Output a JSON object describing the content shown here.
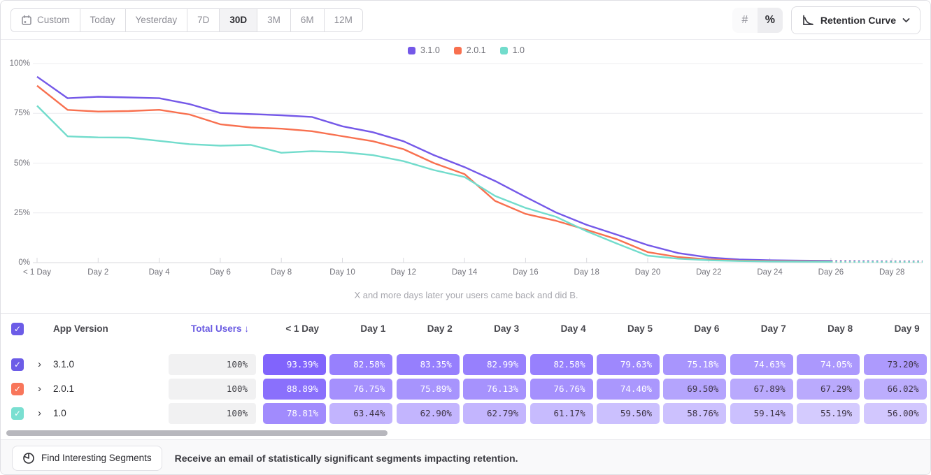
{
  "toolbar": {
    "date_ranges": [
      "Custom",
      "Today",
      "Yesterday",
      "7D",
      "30D",
      "3M",
      "6M",
      "12M"
    ],
    "selected_range": "30D",
    "mode_number_label": "#",
    "mode_percent_label": "%",
    "selected_mode": "%",
    "view_selector_label": "Retention Curve"
  },
  "legend": [
    {
      "label": "3.1.0",
      "color": "#7458E8"
    },
    {
      "label": "2.0.1",
      "color": "#F8704F"
    },
    {
      "label": "1.0",
      "color": "#72DCCC"
    }
  ],
  "chart_data": {
    "type": "line",
    "title": "",
    "caption": "X and more days later your users came back and did B.",
    "ylabel": "",
    "xlabel": "",
    "ylim": [
      0,
      100
    ],
    "y_tick_labels": [
      "0%",
      "25%",
      "50%",
      "75%",
      "100%"
    ],
    "x": [
      0,
      1,
      2,
      3,
      4,
      5,
      6,
      7,
      8,
      9,
      10,
      11,
      12,
      13,
      14,
      15,
      16,
      17,
      18,
      19,
      20,
      21,
      22,
      23,
      24,
      25,
      26,
      27,
      28
    ],
    "x_tick_days": [
      0,
      2,
      4,
      6,
      8,
      10,
      12,
      14,
      16,
      18,
      20,
      22,
      24,
      26,
      28
    ],
    "x_tick_labels": [
      "< 1 Day",
      "Day 2",
      "Day 4",
      "Day 6",
      "Day 8",
      "Day 10",
      "Day 12",
      "Day 14",
      "Day 16",
      "Day 18",
      "Day 20",
      "Day 22",
      "Day 24",
      "Day 26",
      "Day 28"
    ],
    "legend_position": "top-center",
    "grid": "horizontal",
    "series": [
      {
        "name": "3.1.0",
        "color": "#7458E8",
        "values": [
          93.39,
          82.58,
          83.35,
          82.99,
          82.58,
          79.63,
          75.18,
          74.63,
          74.05,
          73.2,
          68.5,
          65.5,
          61.0,
          54.0,
          48.0,
          41.0,
          33.0,
          25.2,
          19.0,
          14.0,
          8.8,
          4.8,
          2.6,
          1.6,
          1.2,
          1.0,
          0.9,
          0.8,
          0.7
        ]
      },
      {
        "name": "2.0.1",
        "color": "#F8704F",
        "values": [
          88.89,
          76.75,
          75.89,
          76.13,
          76.76,
          74.4,
          69.5,
          67.89,
          67.29,
          66.02,
          63.5,
          61.0,
          57.0,
          50.0,
          44.5,
          31.0,
          24.5,
          21.0,
          16.5,
          11.7,
          5.3,
          2.8,
          1.6,
          1.0,
          0.8,
          0.7,
          0.6,
          0.5,
          0.5
        ]
      },
      {
        "name": "1.0",
        "color": "#72DCCC",
        "values": [
          78.81,
          63.44,
          62.9,
          62.79,
          61.17,
          59.5,
          58.76,
          59.14,
          55.19,
          56.0,
          55.5,
          54.0,
          51.0,
          46.5,
          43.0,
          33.5,
          27.5,
          23.0,
          15.8,
          9.5,
          3.5,
          2.0,
          1.2,
          0.8,
          0.6,
          0.5,
          0.45,
          0.4,
          0.4
        ]
      }
    ]
  },
  "table": {
    "columns": [
      "App Version",
      "Total Users",
      "< 1 Day",
      "Day 1",
      "Day 2",
      "Day 3",
      "Day 4",
      "Day 5",
      "Day 6",
      "Day 7",
      "Day 8",
      "Day 9"
    ],
    "sort_column": "Total Users",
    "sort_indicator": "↓",
    "checkmark": "✓",
    "row_chevron": "›",
    "header_checkbox_color": "#6C5CE7",
    "rows": [
      {
        "name": "3.1.0",
        "checkbox_color": "#6C5CE7",
        "total_users": "100%",
        "values": [
          93.39,
          82.58,
          83.35,
          82.99,
          82.58,
          79.63,
          75.18,
          74.63,
          74.05,
          73.2
        ]
      },
      {
        "name": "2.0.1",
        "checkbox_color": "#F8765B",
        "total_users": "100%",
        "values": [
          88.89,
          76.75,
          75.89,
          76.13,
          76.76,
          74.4,
          69.5,
          67.89,
          67.29,
          66.02
        ]
      },
      {
        "name": "1.0",
        "checkbox_color": "#7ADFD1",
        "total_users": "100%",
        "values": [
          78.81,
          63.44,
          62.9,
          62.79,
          61.17,
          59.5,
          58.76,
          59.14,
          55.19,
          56.0
        ]
      }
    ],
    "cell_base_rgb": "122,92,252"
  },
  "footer": {
    "button_label": "Find Interesting Segments",
    "message": "Receive an email of statistically significant segments impacting retention."
  }
}
